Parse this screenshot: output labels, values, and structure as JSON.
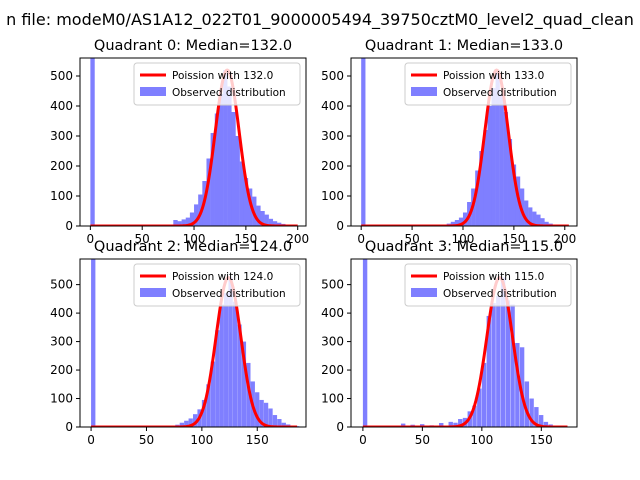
{
  "figure": {
    "suptitle": "n file: modeM0/AS1A12_022T01_9000005494_39750cztM0_level2_quad_clean"
  },
  "colors": {
    "histogram": "#7f7fff",
    "poisson_line": "#ff0000",
    "axes": "#000000",
    "background": "#ffffff",
    "legend_border": "#cccccc"
  },
  "chart_data": [
    {
      "type": "bar",
      "title": "Quadrant 0: Median=132.0",
      "legend": [
        "Poission with 132.0",
        "Observed distribution"
      ],
      "legend_position": "top-right",
      "xlim": [
        -10,
        208
      ],
      "ylim": [
        0,
        560
      ],
      "xticks": [
        0,
        50,
        100,
        150,
        200
      ],
      "yticks": [
        0,
        100,
        200,
        300,
        400,
        500
      ],
      "poisson_mean": 132.0,
      "bin_width": 4.2,
      "bins": [
        [
          0,
          560
        ],
        [
          80,
          20
        ],
        [
          84,
          16
        ],
        [
          88,
          22
        ],
        [
          92,
          28
        ],
        [
          96,
          45
        ],
        [
          100,
          72
        ],
        [
          104,
          105
        ],
        [
          108,
          150
        ],
        [
          112,
          225
        ],
        [
          116,
          310
        ],
        [
          120,
          375
        ],
        [
          124,
          440
        ],
        [
          128,
          520
        ],
        [
          132,
          465
        ],
        [
          136,
          380
        ],
        [
          140,
          300
        ],
        [
          144,
          215
        ],
        [
          148,
          160
        ],
        [
          152,
          125
        ],
        [
          156,
          98
        ],
        [
          160,
          68
        ],
        [
          164,
          50
        ],
        [
          168,
          38
        ],
        [
          172,
          24
        ],
        [
          176,
          16
        ],
        [
          180,
          11
        ],
        [
          184,
          7
        ],
        [
          188,
          4
        ],
        [
          192,
          2
        ],
        [
          196,
          1
        ]
      ]
    },
    {
      "type": "bar",
      "title": "Quadrant 1: Median=133.0",
      "legend": [
        "Poission with 133.0",
        "Observed distribution"
      ],
      "legend_position": "top-right",
      "xlim": [
        -10,
        212
      ],
      "ylim": [
        0,
        560
      ],
      "xticks": [
        0,
        50,
        100,
        150,
        200
      ],
      "yticks": [
        0,
        100,
        200,
        300,
        400,
        500
      ],
      "poisson_mean": 133.0,
      "bin_width": 4.2,
      "bins": [
        [
          0,
          560
        ],
        [
          84,
          8
        ],
        [
          88,
          14
        ],
        [
          92,
          20
        ],
        [
          96,
          28
        ],
        [
          100,
          45
        ],
        [
          104,
          80
        ],
        [
          108,
          125
        ],
        [
          112,
          185
        ],
        [
          116,
          250
        ],
        [
          120,
          320
        ],
        [
          124,
          400
        ],
        [
          128,
          460
        ],
        [
          132,
          520
        ],
        [
          136,
          440
        ],
        [
          140,
          380
        ],
        [
          144,
          290
        ],
        [
          148,
          205
        ],
        [
          152,
          165
        ],
        [
          156,
          125
        ],
        [
          160,
          85
        ],
        [
          164,
          62
        ],
        [
          168,
          48
        ],
        [
          172,
          38
        ],
        [
          176,
          26
        ],
        [
          180,
          14
        ],
        [
          184,
          8
        ],
        [
          188,
          5
        ],
        [
          192,
          3
        ],
        [
          196,
          1
        ]
      ]
    },
    {
      "type": "bar",
      "title": "Quadrant 2: Median=124.0",
      "legend": [
        "Poission with 124.0",
        "Observed distribution"
      ],
      "legend_position": "top-right",
      "xlim": [
        -10,
        194
      ],
      "ylim": [
        0,
        590
      ],
      "xticks": [
        0,
        50,
        100,
        150
      ],
      "yticks": [
        0,
        100,
        200,
        300,
        400,
        500
      ],
      "poisson_mean": 124.0,
      "bin_width": 3.9,
      "bins": [
        [
          0,
          590
        ],
        [
          76,
          8
        ],
        [
          80,
          15
        ],
        [
          84,
          22
        ],
        [
          88,
          30
        ],
        [
          92,
          45
        ],
        [
          96,
          62
        ],
        [
          100,
          95
        ],
        [
          104,
          150
        ],
        [
          108,
          230
        ],
        [
          112,
          340
        ],
        [
          116,
          430
        ],
        [
          120,
          470
        ],
        [
          124,
          525
        ],
        [
          128,
          440
        ],
        [
          132,
          360
        ],
        [
          136,
          300
        ],
        [
          140,
          225
        ],
        [
          144,
          160
        ],
        [
          148,
          122
        ],
        [
          152,
          95
        ],
        [
          156,
          85
        ],
        [
          160,
          65
        ],
        [
          164,
          42
        ],
        [
          168,
          28
        ],
        [
          172,
          15
        ],
        [
          176,
          9
        ],
        [
          180,
          5
        ],
        [
          184,
          3
        ],
        [
          188,
          1
        ]
      ]
    },
    {
      "type": "bar",
      "title": "Quadrant 3: Median=115.0",
      "legend": [
        "Poission with 115.0",
        "Observed distribution"
      ],
      "legend_position": "top-right",
      "xlim": [
        -10,
        180
      ],
      "ylim": [
        0,
        590
      ],
      "xticks": [
        0,
        50,
        100,
        150
      ],
      "yticks": [
        0,
        100,
        200,
        300,
        400,
        500
      ],
      "poisson_mean": 115.0,
      "bin_width": 3.7,
      "bins": [
        [
          0,
          590
        ],
        [
          32,
          12
        ],
        [
          40,
          8
        ],
        [
          48,
          10
        ],
        [
          56,
          6
        ],
        [
          64,
          14
        ],
        [
          72,
          18
        ],
        [
          76,
          15
        ],
        [
          80,
          28
        ],
        [
          84,
          32
        ],
        [
          88,
          55
        ],
        [
          92,
          75
        ],
        [
          96,
          135
        ],
        [
          100,
          225
        ],
        [
          104,
          390
        ],
        [
          108,
          435
        ],
        [
          112,
          460
        ],
        [
          116,
          525
        ],
        [
          120,
          445
        ],
        [
          124,
          430
        ],
        [
          128,
          295
        ],
        [
          132,
          280
        ],
        [
          136,
          160
        ],
        [
          140,
          100
        ],
        [
          144,
          70
        ],
        [
          148,
          42
        ],
        [
          152,
          18
        ],
        [
          156,
          9
        ],
        [
          160,
          5
        ],
        [
          164,
          2
        ]
      ]
    }
  ]
}
